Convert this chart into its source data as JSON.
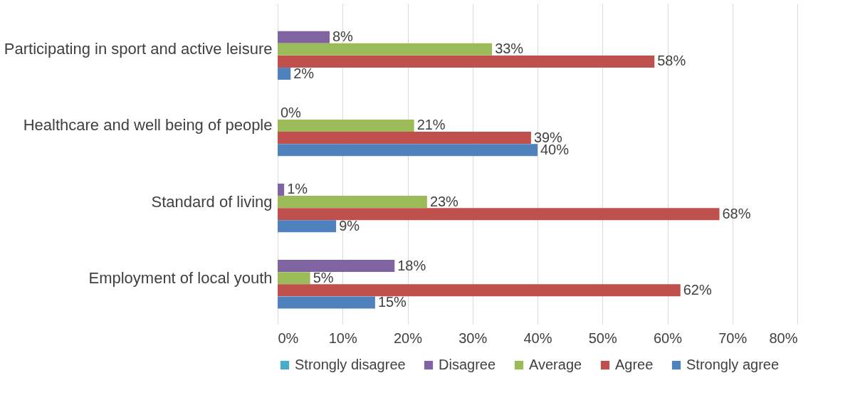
{
  "chart_data": {
    "type": "bar",
    "orientation": "horizontal",
    "categories": [
      "Participating in sport and active leisure",
      "Healthcare and well being of people",
      "Standard of living",
      "Employment of local youth"
    ],
    "series": [
      {
        "name": "Strongly disagree",
        "color": "#4bacc6",
        "values": [
          0,
          0,
          0,
          0
        ],
        "value_labels": [
          null,
          null,
          null,
          null
        ]
      },
      {
        "name": "Disagree",
        "color": "#8064a2",
        "values": [
          8,
          0,
          1,
          18
        ],
        "value_labels": [
          "8%",
          "0%",
          "1%",
          "18%"
        ]
      },
      {
        "name": "Average",
        "color": "#9bbb59",
        "values": [
          33,
          21,
          23,
          5
        ],
        "value_labels": [
          "33%",
          "21%",
          "23%",
          "5%"
        ]
      },
      {
        "name": "Agree",
        "color": "#c0504d",
        "values": [
          58,
          39,
          68,
          62
        ],
        "value_labels": [
          "58%",
          "39%",
          "68%",
          "62%"
        ]
      },
      {
        "name": "Strongly agree",
        "color": "#4f81bd",
        "values": [
          2,
          40,
          9,
          15
        ],
        "value_labels": [
          "2%",
          "40%",
          "9%",
          "15%"
        ]
      }
    ],
    "xlim": [
      0,
      80
    ],
    "xticks": [
      {
        "value": 0,
        "label": "0%"
      },
      {
        "value": 10,
        "label": "10%"
      },
      {
        "value": 20,
        "label": "20%"
      },
      {
        "value": 30,
        "label": "30%"
      },
      {
        "value": 40,
        "label": "40%"
      },
      {
        "value": 50,
        "label": "50%"
      },
      {
        "value": 60,
        "label": "60%"
      },
      {
        "value": 70,
        "label": "70%"
      },
      {
        "value": 80,
        "label": "80%"
      }
    ],
    "grid": "x",
    "legend": "bottom"
  }
}
